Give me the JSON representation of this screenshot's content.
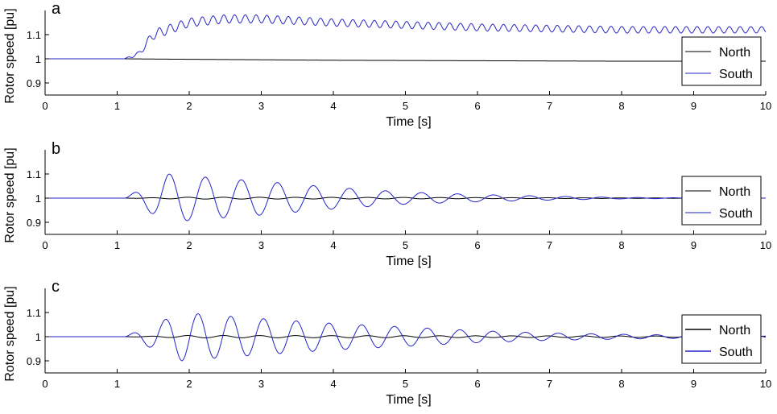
{
  "chart_data": [
    {
      "type": "line",
      "panel_label": "a",
      "xlabel": "Time [s]",
      "ylabel": "Rotor speed [pu]",
      "xlim": [
        0,
        10
      ],
      "ylim": [
        0.85,
        1.2
      ],
      "xticks": [
        0,
        1,
        2,
        3,
        4,
        5,
        6,
        7,
        8,
        9,
        10
      ],
      "xtick_labels": [
        "0",
        "1",
        "2",
        "3",
        "4",
        "5",
        "6",
        "7",
        "8",
        "9",
        "10"
      ],
      "yticks": [
        0.9,
        1,
        1.1
      ],
      "ytick_labels": [
        "0.9",
        "1",
        "1.1"
      ],
      "grid": false,
      "legend_position": "right",
      "legend": [
        "North",
        "South"
      ],
      "series": [
        {
          "name": "North",
          "color": "#000000",
          "x": [
            0,
            1.1,
            1.5,
            2,
            3,
            4,
            5,
            6,
            7,
            8,
            9,
            10
          ],
          "y": [
            1.0,
            1.0,
            0.999,
            0.998,
            0.996,
            0.994,
            0.993,
            0.992,
            0.991,
            0.99,
            0.99,
            0.99
          ]
        },
        {
          "name": "South",
          "color": "#2323c8",
          "model": "osc",
          "pre_value": 1.0,
          "onset": 1.1,
          "base_x": [
            1.1,
            1.3,
            1.5,
            2.0,
            2.5,
            3.0,
            4.0,
            5.0,
            6.0,
            7.0,
            8.0,
            9.0,
            10.0
          ],
          "base_y": [
            1.0,
            1.02,
            1.1,
            1.15,
            1.165,
            1.165,
            1.15,
            1.14,
            1.13,
            1.125,
            1.12,
            1.12,
            1.12
          ],
          "amp_x": [
            1.1,
            1.5,
            2.0,
            4.0,
            10.0
          ],
          "amp_y": [
            0.0,
            0.02,
            0.018,
            0.015,
            0.013
          ],
          "freq": 6.7
        }
      ]
    },
    {
      "type": "line",
      "panel_label": "b",
      "xlabel": "Time [s]",
      "ylabel": "Rotor speed [pu]",
      "xlim": [
        0,
        10
      ],
      "ylim": [
        0.85,
        1.2
      ],
      "xticks": [
        0,
        1,
        2,
        3,
        4,
        5,
        6,
        7,
        8,
        9,
        10
      ],
      "xtick_labels": [
        "0",
        "1",
        "2",
        "3",
        "4",
        "5",
        "6",
        "7",
        "8",
        "9",
        "10"
      ],
      "yticks": [
        0.9,
        1,
        1.1
      ],
      "ytick_labels": [
        "0.9",
        "1",
        "1.1"
      ],
      "grid": false,
      "legend_position": "right",
      "legend": [
        "North",
        "South"
      ],
      "series": [
        {
          "name": "North",
          "color": "#000000",
          "model": "osc",
          "pre_value": 1.0,
          "onset": 1.1,
          "base_x": [
            1.1,
            10.0
          ],
          "base_y": [
            1.0,
            1.0
          ],
          "amp_x": [
            1.1,
            2.0,
            5.0,
            8.0,
            10.0
          ],
          "amp_y": [
            0.0,
            0.004,
            0.003,
            0.001,
            0.0
          ],
          "freq": 2.0,
          "phase": 3.14
        },
        {
          "name": "South",
          "color": "#2323c8",
          "model": "osc",
          "pre_value": 1.0,
          "onset": 1.1,
          "base_x": [
            1.1,
            10.0
          ],
          "base_y": [
            1.0,
            1.0
          ],
          "amp_x": [
            1.1,
            1.7,
            2.3,
            3.0,
            4.0,
            5.0,
            6.0,
            7.0,
            8.0,
            9.0,
            10.0
          ],
          "amp_y": [
            0.0,
            0.1,
            0.085,
            0.07,
            0.045,
            0.025,
            0.015,
            0.008,
            0.003,
            0.001,
            0.0
          ],
          "freq": 2.0
        }
      ]
    },
    {
      "type": "line",
      "panel_label": "c",
      "xlabel": "Time [s]",
      "ylabel": "Rotor speed [pu]",
      "xlim": [
        0,
        10
      ],
      "ylim": [
        0.85,
        1.2
      ],
      "xticks": [
        0,
        1,
        2,
        3,
        4,
        5,
        6,
        7,
        8,
        9,
        10
      ],
      "xtick_labels": [
        "0",
        "1",
        "2",
        "3",
        "4",
        "5",
        "6",
        "7",
        "8",
        "9",
        "10"
      ],
      "yticks": [
        0.9,
        1,
        1.1
      ],
      "ytick_labels": [
        "0.9",
        "1",
        "1.1"
      ],
      "grid": false,
      "legend_position": "right",
      "legend": [
        "North",
        "South"
      ],
      "series": [
        {
          "name": "North",
          "color": "#000000",
          "model": "osc",
          "pre_value": 1.0,
          "onset": 1.1,
          "base_x": [
            1.1,
            10.0
          ],
          "base_y": [
            1.0,
            1.0
          ],
          "amp_x": [
            1.1,
            2.0,
            5.0,
            8.0,
            10.0
          ],
          "amp_y": [
            0.0,
            0.005,
            0.004,
            0.003,
            0.002
          ],
          "freq": 2.0,
          "phase": 3.14
        },
        {
          "name": "South",
          "color": "#2323c8",
          "model": "osc",
          "pre_value": 1.0,
          "onset": 1.1,
          "base_x": [
            1.1,
            10.0
          ],
          "base_y": [
            1.0,
            1.0
          ],
          "amp_x": [
            1.1,
            1.9,
            2.3,
            3.0,
            4.0,
            5.0,
            6.0,
            7.0,
            8.0,
            9.0,
            10.0
          ],
          "amp_y": [
            0.0,
            0.1,
            0.09,
            0.075,
            0.055,
            0.04,
            0.025,
            0.015,
            0.01,
            0.006,
            0.005
          ],
          "freq": 2.2
        }
      ]
    }
  ]
}
